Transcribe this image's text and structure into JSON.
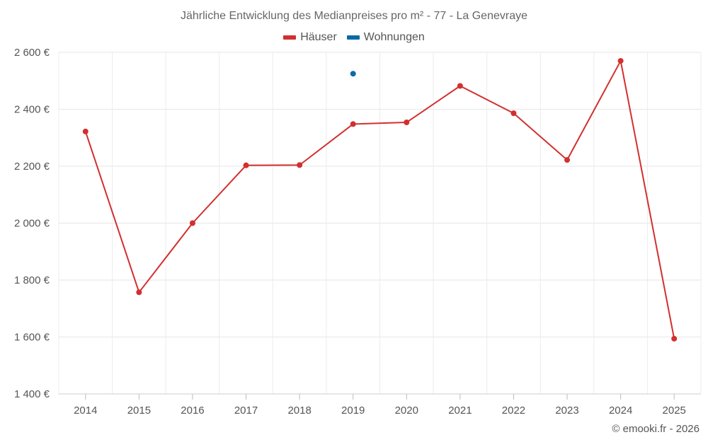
{
  "chart_data": {
    "type": "line",
    "title": "Jährliche Entwicklung des Medianpreises pro m² - 77 - La Genevraye",
    "categories": [
      "2014",
      "2015",
      "2016",
      "2017",
      "2018",
      "2019",
      "2020",
      "2021",
      "2022",
      "2023",
      "2024",
      "2025"
    ],
    "series": [
      {
        "name": "Häuser",
        "color": "#d32f2f",
        "values": [
          2322,
          1757,
          2000,
          2203,
          2204,
          2348,
          2354,
          2482,
          2386,
          2222,
          2570,
          1594
        ]
      },
      {
        "name": "Wohnungen",
        "color": "#0d6aa8",
        "values": [
          null,
          null,
          null,
          null,
          null,
          2525,
          null,
          null,
          null,
          null,
          null,
          null
        ]
      }
    ],
    "y_ticks": [
      1400,
      1600,
      1800,
      2000,
      2200,
      2400,
      2600
    ],
    "y_tick_labels": [
      "1 400 €",
      "1 600 €",
      "1 800 €",
      "2 000 €",
      "2 200 €",
      "2 400 €",
      "2 600 €"
    ],
    "ylim": [
      1400,
      2600
    ],
    "xlabel": "",
    "ylabel": "",
    "grid": true,
    "legend_position": "top-center"
  },
  "credit": "© emooki.fr - 2026"
}
